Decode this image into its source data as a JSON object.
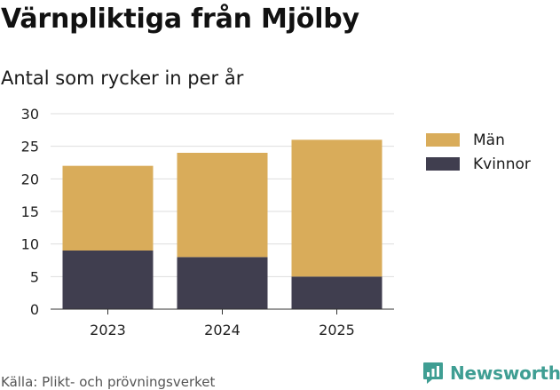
{
  "title": "Värnpliktiga från Mjölby",
  "subtitle": "Antal som rycker in per år",
  "source": "Källa: Plikt- och prövningsverket",
  "brand": "Newsworthy",
  "colors": {
    "man": "#d9ac5a",
    "kvinnor": "#403e4f",
    "grid": "#dddddd",
    "brand": "#3f9e93"
  },
  "chart_data": {
    "type": "bar",
    "stacked": true,
    "categories": [
      "2023",
      "2024",
      "2025"
    ],
    "series": [
      {
        "name": "Kvinnor",
        "values": [
          9,
          8,
          5
        ]
      },
      {
        "name": "Män",
        "values": [
          13,
          16,
          21
        ]
      }
    ],
    "legend": [
      "Män",
      "Kvinnor"
    ],
    "legend_position": "right",
    "yticks": [
      0,
      5,
      10,
      15,
      20,
      25,
      30
    ],
    "ylim": [
      0,
      30
    ],
    "title": "Värnpliktiga från Mjölby",
    "subtitle": "Antal som rycker in per år",
    "xlabel": "",
    "ylabel": ""
  }
}
